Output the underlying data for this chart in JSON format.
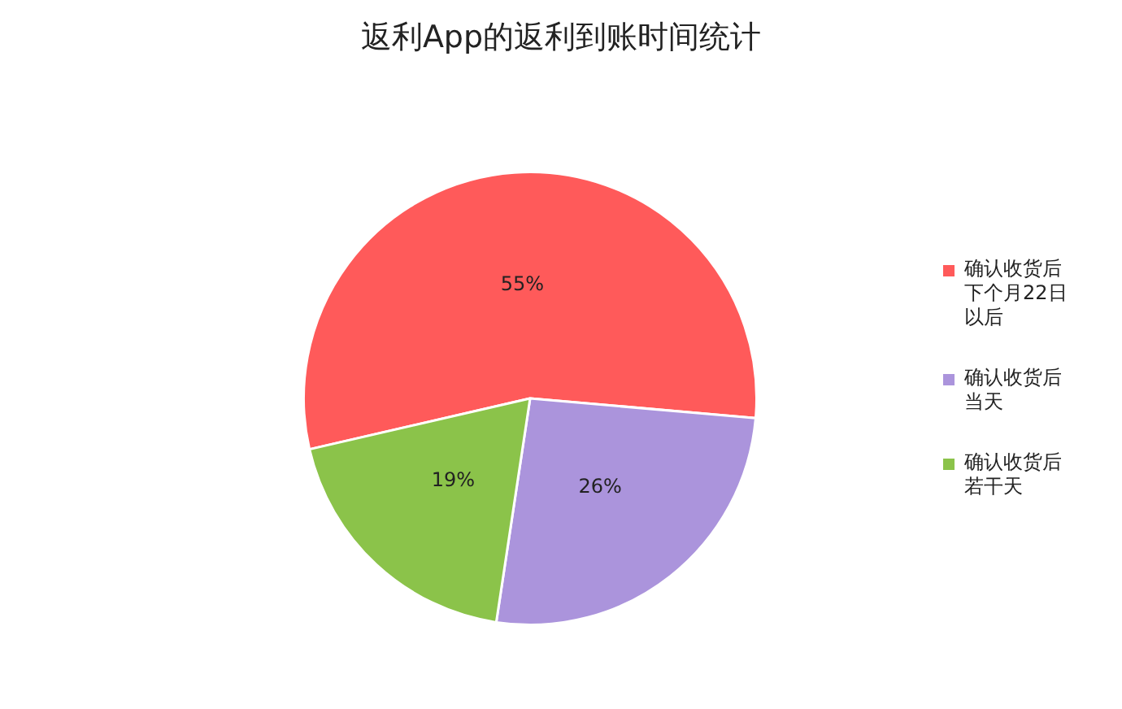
{
  "chart_data": {
    "type": "pie",
    "title": "返利App的返利到账时间统计",
    "categories": [
      "确认收货后下个月22日以后",
      "确认收货后当天",
      "确认收货后若干天"
    ],
    "values": [
      55,
      26,
      19
    ],
    "colors": [
      "#ff5a5a",
      "#ab94dc",
      "#8bc34a"
    ],
    "value_labels": [
      "55%",
      "26%",
      "19%"
    ],
    "legend": "right"
  }
}
